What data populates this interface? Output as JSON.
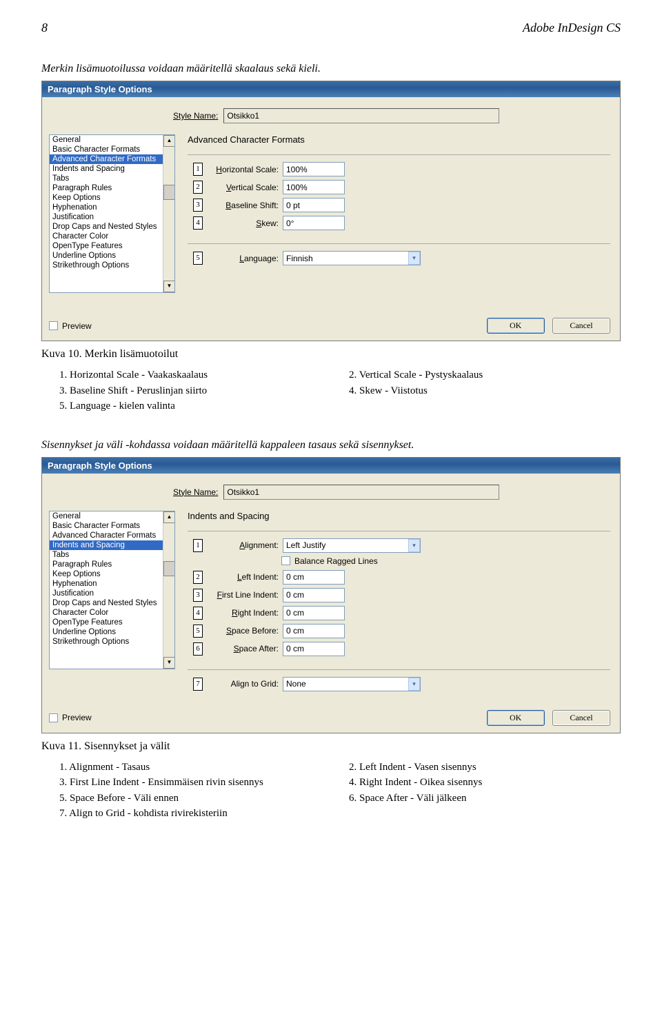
{
  "page": {
    "number": "8",
    "product": "Adobe InDesign CS"
  },
  "intro1": "Merkin lisämuotoilussa voidaan määritellä skaalaus sekä kieli.",
  "intro2": "Sisennykset ja väli -kohdassa voidaan määritellä kappaleen tasaus sekä sisennykset.",
  "dialog": {
    "title": "Paragraph Style Options",
    "style_name_label": "Style Name:",
    "style_name_value": "Otsikko1",
    "preview_label": "Preview",
    "ok": "OK",
    "cancel": "Cancel",
    "categories": [
      "General",
      "Basic Character Formats",
      "Advanced Character Formats",
      "Indents and Spacing",
      "Tabs",
      "Paragraph Rules",
      "Keep Options",
      "Hyphenation",
      "Justification",
      "Drop Caps and Nested Styles",
      "Character Color",
      "OpenType Features",
      "Underline Options",
      "Strikethrough Options"
    ]
  },
  "panel1": {
    "title": "Advanced Character Formats",
    "fields": [
      {
        "n": "1",
        "labelPre": "H",
        "labelRest": "orizontal Scale:",
        "value": "100%"
      },
      {
        "n": "2",
        "labelPre": "V",
        "labelRest": "ertical Scale:",
        "value": "100%"
      },
      {
        "n": "3",
        "labelPre": "B",
        "labelRest": "aseline Shift:",
        "value": "0 pt"
      },
      {
        "n": "4",
        "labelPre": "S",
        "labelRest": "kew:",
        "value": "0°"
      }
    ],
    "lang": {
      "n": "5",
      "labelPre": "L",
      "labelRest": "anguage:",
      "value": "Finnish"
    }
  },
  "panel2": {
    "title": "Indents and Spacing",
    "align": {
      "n": "1",
      "labelPre": "A",
      "labelRest": "lignment:",
      "value": "Left Justify"
    },
    "balance": "Balance Ragged Lines",
    "fields": [
      {
        "n": "2",
        "labelPre": "L",
        "labelRest": "eft Indent:",
        "value": "0 cm"
      },
      {
        "n": "3",
        "labelPre": "F",
        "labelRest": "irst Line Indent:",
        "value": "0 cm"
      },
      {
        "n": "4",
        "labelPre": "R",
        "labelRest": "ight Indent:",
        "value": "0 cm"
      },
      {
        "n": "5",
        "labelPre": "S",
        "labelRest": "pace Before:",
        "value": "0 cm"
      },
      {
        "n": "6",
        "labelPre": "S",
        "labelRest": "pace After:",
        "value": "0 cm"
      }
    ],
    "grid": {
      "n": "7",
      "label": "Align to Grid:",
      "value": "None"
    }
  },
  "caption1": "Kuva 10. Merkin lisämuotoilut",
  "list1_left": [
    "1. Horizontal Scale - Vaakaskaalaus",
    "3. Baseline Shift - Peruslinjan siirto",
    "5. Language - kielen valinta"
  ],
  "list1_right": [
    "2. Vertical Scale - Pystyskaalaus",
    "4. Skew - Viistotus"
  ],
  "caption2": "Kuva 11. Sisennykset ja välit",
  "list2_left": [
    "1. Alignment - Tasaus",
    "3. First Line Indent - Ensimmäisen rivin sisennys",
    "5. Space Before - Väli ennen",
    "7. Align to Grid - kohdista rivirekisteriin"
  ],
  "list2_right": [
    "2. Left Indent - Vasen sisennys",
    "4. Right Indent - Oikea sisennys",
    "6. Space After - Väli jälkeen"
  ]
}
